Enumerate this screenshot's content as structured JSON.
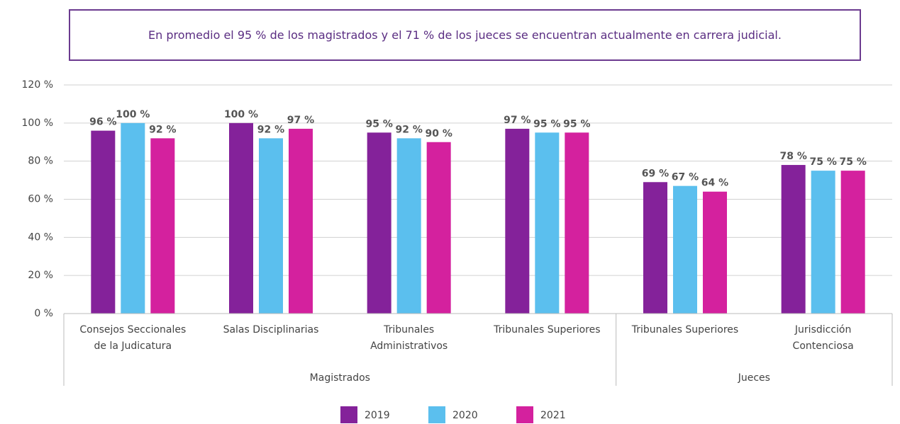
{
  "chart_data": {
    "type": "bar",
    "title": "En promedio el 95 % de los magistrados y el 71 % de los jueces se encuentran actualmente en carrera judicial.",
    "categories": [
      "Consejos Seccionales de la Judicatura",
      "Salas Disciplinarias",
      "Tribunales Administrativos",
      "Tribunales Superiores",
      "Tribunales Superiores",
      "Jurisdicción Contenciosa"
    ],
    "category_groups": [
      "Magistrados",
      "Magistrados",
      "Magistrados",
      "Magistrados",
      "Jueces",
      "Jueces"
    ],
    "series": [
      {
        "name": "2019",
        "color": "#84229a",
        "values": [
          96,
          100,
          95,
          97,
          69,
          78
        ],
        "value_labels": [
          "96 %",
          "100 %",
          "95 %",
          "97 %",
          "69 %",
          "78 %"
        ]
      },
      {
        "name": "2020",
        "color": "#5bbfee",
        "values": [
          100,
          92,
          92,
          95,
          67,
          75
        ],
        "value_labels": [
          "100 %",
          "92 %",
          "92 %",
          "95 %",
          "67 %",
          "75 %"
        ]
      },
      {
        "name": "2021",
        "color": "#d4219e",
        "values": [
          92,
          97,
          90,
          95,
          64,
          75
        ],
        "value_labels": [
          "92 %",
          "97 %",
          "90 %",
          "95 %",
          "64 %",
          "75 %"
        ]
      }
    ],
    "ylim": [
      0,
      120
    ],
    "yticks": [
      {
        "value": 0,
        "label": "0 %"
      },
      {
        "value": 20,
        "label": "20 %"
      },
      {
        "value": 40,
        "label": "40 %"
      },
      {
        "value": 60,
        "label": "60 %"
      },
      {
        "value": 80,
        "label": "80 %"
      },
      {
        "value": 100,
        "label": "100 %"
      },
      {
        "value": 120,
        "label": "120 %"
      }
    ],
    "grid": true,
    "legend": "bottom"
  }
}
